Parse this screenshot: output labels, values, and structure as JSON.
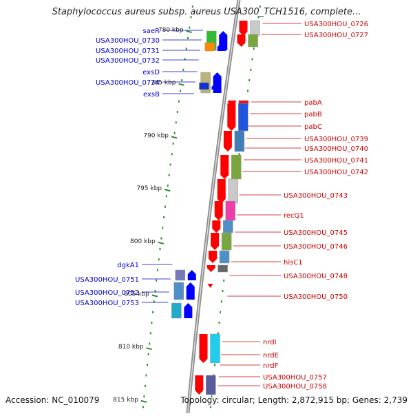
{
  "title": "Staphylococcus aureus subsp. aureus USA300_TCH1516, complete...",
  "accession": "Accession: NC_010079",
  "topology": "Topology: circular; Length: 2,872,915 bp; Genes: 2,739",
  "colors": {
    "backbone": "#8c8c8c",
    "tick": "#2a8a2a",
    "forward_label": "#cc0000",
    "reverse_label": "#0000cc",
    "forward_arrow": "#ff0000",
    "reverse_arrow": "#0000ff"
  },
  "scale_labels": [
    "780 kbp",
    "785 kbp",
    "790 kbp",
    "795 kbp",
    "800 kbp",
    "805 kbp",
    "810 kbp",
    "815 kbp"
  ],
  "right_genes": [
    "USA300HOU_0726",
    "USA300HOU_0727",
    "pabA",
    "pabB",
    "pabC",
    "USA300HOU_0739",
    "USA300HOU_0740",
    "USA300HOU_0741",
    "USA300HOU_0742",
    "USA300HOU_0743",
    "recQ1",
    "USA300HOU_0745",
    "USA300HOU_0746",
    "hisC1",
    "USA300HOU_0748",
    "USA300HOU_0750",
    "nrdI",
    "nrdE",
    "nrdF",
    "USA300HOU_0757",
    "USA300HOU_0758"
  ],
  "left_genes": [
    "saeR",
    "USA300HOU_0730",
    "USA300HOU_0731",
    "USA300HOU_0732",
    "exsD",
    "USA300HOU_0734",
    "exsB",
    "dgkA1",
    "USA300HOU_0751",
    "USA300HOU_0752",
    "USA300HOU_0753"
  ]
}
